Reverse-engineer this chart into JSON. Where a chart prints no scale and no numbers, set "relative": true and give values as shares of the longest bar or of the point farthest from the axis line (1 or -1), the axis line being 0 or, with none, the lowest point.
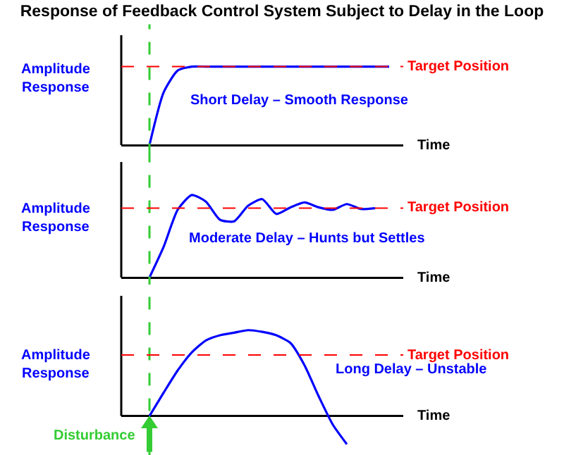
{
  "chart_data": [
    {
      "type": "line",
      "title": "Response of Feedback Control System Subject to Delay in the Loop",
      "relative": true,
      "tick_labels": false,
      "ylabel": "Amplitude Response",
      "xlabel": "Time",
      "categories": [
        null,
        null,
        null,
        null,
        null,
        null,
        null,
        null,
        null,
        null,
        null,
        null,
        null,
        null,
        null,
        null,
        null,
        null,
        null,
        null,
        null
      ],
      "series": [
        {
          "color": "#0000ff",
          "values": [
            null,
            null,
            0,
            0.67,
            0.95,
            1,
            1,
            1,
            1,
            1,
            1,
            1,
            1,
            1,
            1,
            1,
            1,
            1,
            1,
            1,
            null
          ]
        }
      ],
      "ref_lines": [
        {
          "axis": "y",
          "value": 1,
          "label": "Target Position",
          "color": "#ff0000",
          "line_style": "dashed"
        }
      ],
      "annotations": [
        "Short Delay – Smooth Response"
      ]
    },
    {
      "type": "line",
      "relative": true,
      "tick_labels": false,
      "ylabel": "Amplitude Response",
      "xlabel": "Time",
      "categories": [
        null,
        null,
        null,
        null,
        null,
        null,
        null,
        null,
        null,
        null,
        null,
        null,
        null,
        null,
        null,
        null,
        null,
        null,
        null,
        null,
        null
      ],
      "series": [
        {
          "color": "#0000ff",
          "values": [
            null,
            null,
            0,
            0.37,
            0.82,
            1,
            0.92,
            0.7,
            0.68,
            0.87,
            0.95,
            0.77,
            0.85,
            0.91,
            0.85,
            0.82,
            0.89,
            0.83,
            0.84,
            null,
            null
          ]
        }
      ],
      "ref_lines": [
        {
          "axis": "y",
          "value": 0.84,
          "label": "Target Position",
          "color": "#ff0000",
          "line_style": "dashed"
        }
      ],
      "annotations": [
        "Moderate Delay – Hunts but Settles"
      ]
    },
    {
      "type": "line",
      "relative": true,
      "tick_labels": false,
      "ylabel": "Amplitude Response",
      "xlabel": "Time",
      "categories": [
        null,
        null,
        null,
        null,
        null,
        null,
        null,
        null,
        null,
        null,
        null,
        null,
        null,
        null,
        null,
        null,
        null,
        null,
        null,
        null,
        null
      ],
      "series": [
        {
          "color": "#0000ff",
          "values": [
            null,
            null,
            0,
            0.27,
            0.53,
            0.74,
            0.88,
            0.94,
            0.97,
            1,
            0.98,
            0.94,
            0.85,
            0.59,
            0.23,
            -0.1,
            -0.33,
            null,
            null,
            null,
            null
          ]
        }
      ],
      "ref_lines": [
        {
          "axis": "y",
          "value": 0.71,
          "label": "Target Position",
          "color": "#ff0000",
          "line_style": "dashed"
        }
      ],
      "annotations": [
        "Long Delay – Unstable",
        "Disturbance"
      ]
    }
  ]
}
